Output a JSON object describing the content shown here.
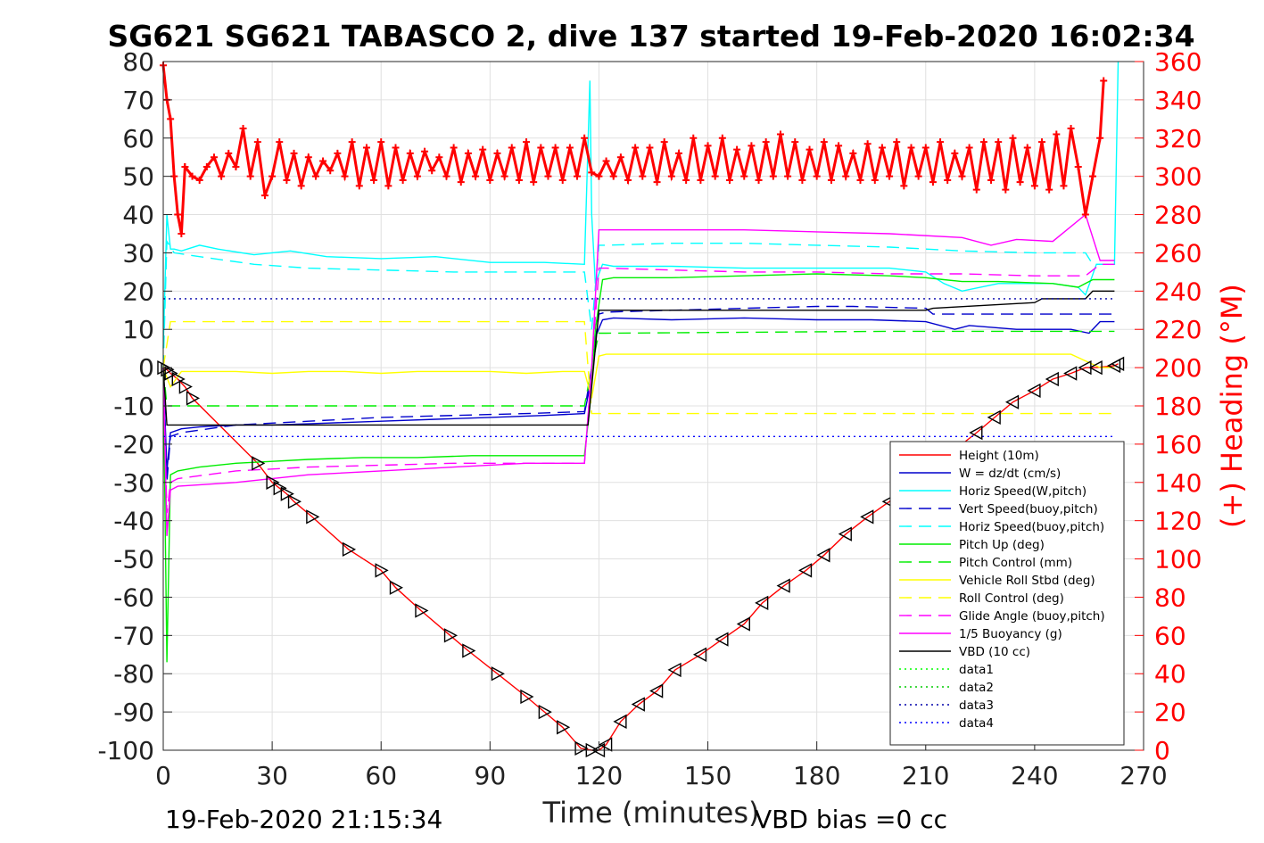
{
  "chart_data": {
    "type": "line",
    "title": "SG621 SG621 TABASCO 2, dive 137 started 19-Feb-2020 16:02:34",
    "xlabel": "Time (minutes)",
    "ylabel": "",
    "y2label": "(+) Heading (°M)",
    "xlim": [
      0,
      270
    ],
    "ylim": [
      -100,
      80
    ],
    "y2lim": [
      0,
      360
    ],
    "xticks": [
      "0",
      "30",
      "60",
      "90",
      "120",
      "150",
      "180",
      "210",
      "240",
      "270"
    ],
    "yticks": [
      "80",
      "70",
      "60",
      "50",
      "40",
      "30",
      "20",
      "10",
      "0",
      "-10",
      "-20",
      "-30",
      "-40",
      "-50",
      "-60",
      "-70",
      "-80",
      "-90",
      "-100"
    ],
    "y2ticks": [
      "360",
      "340",
      "320",
      "300",
      "280",
      "260",
      "240",
      "220",
      "200",
      "180",
      "160",
      "140",
      "120",
      "100",
      "80",
      "60",
      "40",
      "20",
      "0"
    ],
    "grid": true,
    "legend_position": "bottom-right",
    "footer_left": "19-Feb-2020 21:15:34",
    "footer_right": "VBD bias =0 cc",
    "colors": {
      "height": "#ff0000",
      "w": "#0000cc",
      "horiz": "#00ffff",
      "pitch": "#00ee00",
      "roll": "#ffff00",
      "glide": "#ff00ff",
      "vbd": "#000000",
      "heading": "#ff0000",
      "data1": "#00ff00",
      "data2": "#00cc00",
      "data3": "#0000aa",
      "data4": "#0000ff"
    },
    "series": [
      {
        "name": "Height (10m)",
        "style": "solid",
        "color": "#ff0000",
        "x": [
          0,
          1,
          2,
          4,
          6,
          8,
          26,
          30,
          32,
          34,
          36,
          41,
          51,
          60,
          64,
          71,
          79,
          84,
          92,
          100,
          105,
          110,
          115,
          118,
          120,
          122,
          126,
          131,
          136,
          141,
          148,
          154,
          160,
          165,
          171,
          177,
          182,
          188,
          194,
          200,
          205,
          212,
          218,
          224,
          229,
          234,
          240,
          245,
          250,
          254,
          257,
          262,
          263
        ],
        "y": [
          0,
          -0.5,
          -1.5,
          -3,
          -5,
          -8,
          -25,
          -30,
          -31.5,
          -33,
          -35,
          -39,
          -47.5,
          -53,
          -57.5,
          -63.5,
          -70,
          -74,
          -80,
          -86,
          -90,
          -94,
          -99.5,
          -100,
          -100,
          -98.5,
          -92.5,
          -88,
          -84.5,
          -79,
          -75,
          -71,
          -67,
          -61.5,
          -57,
          -53,
          -49,
          -43.5,
          -39,
          -35,
          -30,
          -25,
          -21.5,
          -17,
          -13,
          -9,
          -6,
          -3,
          -1.5,
          0,
          0,
          0.5,
          1
        ]
      },
      {
        "name": "W = dz/dt (cm/s)",
        "style": "solid",
        "color": "#0000cc",
        "x": [
          0,
          1,
          2,
          5,
          10,
          20,
          30,
          45,
          60,
          75,
          90,
          105,
          116,
          117.5,
          119,
          121,
          124,
          140,
          160,
          180,
          195,
          210,
          218,
          222,
          235,
          250,
          255,
          258,
          262
        ],
        "y": [
          0,
          -27,
          -17,
          -16,
          -15.5,
          -15,
          -15,
          -14.5,
          -14,
          -13.5,
          -13,
          -12.5,
          -12,
          -5,
          8,
          12.5,
          13,
          12.5,
          13,
          12.5,
          12.5,
          12,
          10,
          11,
          10,
          10,
          9,
          12,
          12
        ]
      },
      {
        "name": "Horiz Speed(W,pitch)",
        "style": "solid",
        "color": "#00ffff",
        "x": [
          0,
          1,
          2,
          3,
          5,
          10,
          15,
          25,
          35,
          45,
          60,
          75,
          90,
          105,
          116,
          117.5,
          118,
          119,
          121,
          124,
          140,
          160,
          180,
          200,
          210,
          215,
          220,
          230,
          245,
          252,
          254,
          257,
          262,
          263
        ],
        "y": [
          5,
          40,
          31,
          31,
          30.5,
          32,
          31,
          29.5,
          30.5,
          29,
          28.5,
          29,
          27.5,
          27.5,
          27,
          75,
          40,
          22,
          27,
          26.5,
          26.5,
          26,
          26,
          26,
          25,
          22,
          20,
          22,
          22,
          21,
          19,
          27,
          27,
          80
        ]
      },
      {
        "name": "Vert Speed(buoy,pitch)",
        "style": "dashed",
        "color": "#0000cc",
        "x": [
          0,
          1,
          2,
          5,
          20,
          40,
          60,
          80,
          100,
          116,
          118,
          120,
          122,
          140,
          160,
          180,
          190,
          210,
          212,
          230,
          250,
          258,
          262
        ],
        "y": [
          0,
          -30,
          -18,
          -17,
          -15,
          -14,
          -13,
          -12.5,
          -12,
          -11.5,
          0,
          14,
          14.5,
          15,
          15.5,
          16,
          16,
          15.5,
          14,
          14,
          14,
          14,
          14
        ]
      },
      {
        "name": "Horiz Speed(buoy,pitch)",
        "style": "dashed",
        "color": "#00ffff",
        "x": [
          0,
          1,
          3,
          10,
          25,
          40,
          60,
          80,
          100,
          116,
          118,
          120,
          122,
          140,
          160,
          180,
          200,
          220,
          240,
          254,
          256,
          262
        ],
        "y": [
          0,
          33,
          30,
          29,
          27,
          26,
          25.5,
          25,
          25,
          25,
          10,
          32,
          32,
          32.5,
          32.5,
          32,
          31.5,
          30.5,
          30,
          30,
          27,
          27
        ]
      },
      {
        "name": "Pitch Up (deg)",
        "style": "solid",
        "color": "#00ee00",
        "x": [
          0,
          1,
          2,
          4,
          10,
          20,
          30,
          40,
          55,
          70,
          85,
          100,
          116,
          117.5,
          119,
          121,
          124,
          140,
          160,
          180,
          200,
          210,
          215,
          220,
          230,
          245,
          252,
          256,
          262
        ],
        "y": [
          0,
          -77,
          -28,
          -27,
          -26,
          -25,
          -24.5,
          -24,
          -23.5,
          -23.5,
          -23,
          -23,
          -23,
          -10,
          10,
          23,
          23.5,
          23.5,
          24,
          24.5,
          24,
          23.5,
          23,
          22.5,
          22.5,
          22,
          21,
          23,
          23
        ]
      },
      {
        "name": "Pitch Control (mm)",
        "style": "dashed",
        "color": "#00ee00",
        "x": [
          0,
          1,
          3,
          50,
          116,
          118,
          120,
          122,
          200,
          262
        ],
        "y": [
          0,
          -10,
          -10,
          -10,
          -10,
          0,
          9,
          9,
          9.5,
          9.5
        ]
      },
      {
        "name": "Vehicle Roll Stbd (deg)",
        "style": "solid",
        "color": "#ffff00",
        "x": [
          0,
          2,
          5,
          10,
          20,
          30,
          40,
          50,
          60,
          70,
          80,
          90,
          100,
          110,
          116,
          118,
          120,
          122,
          130,
          140,
          150,
          160,
          170,
          180,
          190,
          200,
          210,
          220,
          230,
          240,
          250,
          258,
          262
        ],
        "y": [
          0,
          -5,
          -1,
          -1,
          -1,
          -1.5,
          -1,
          -1,
          -1.5,
          -1,
          -1,
          -1,
          -1.5,
          -1,
          -1,
          -8,
          3,
          3.5,
          3.5,
          3.5,
          3.5,
          3.5,
          3.5,
          3.5,
          3.5,
          3.5,
          3.5,
          3.5,
          3.5,
          3.5,
          3.5,
          0,
          0
        ]
      },
      {
        "name": "Roll Control (deg)",
        "style": "dashed",
        "color": "#ffff00",
        "x": [
          0,
          2,
          5,
          116,
          118,
          120,
          262
        ],
        "y": [
          0,
          12,
          12,
          12,
          -12,
          -12,
          -12
        ]
      },
      {
        "name": "Glide Angle (buoy,pitch)",
        "style": "dashed",
        "color": "#ff00ff",
        "x": [
          0,
          1,
          2,
          4,
          20,
          40,
          60,
          80,
          100,
          116,
          118,
          120,
          122,
          140,
          160,
          180,
          200,
          220,
          240,
          254,
          258,
          262
        ],
        "y": [
          0,
          -38,
          -30,
          -29,
          -27,
          -26,
          -25.5,
          -25,
          -25,
          -25,
          0,
          26,
          26,
          25.5,
          25,
          25,
          24.5,
          24.5,
          24,
          24,
          27,
          27
        ]
      },
      {
        "name": "1/5 Buoyancy (g)",
        "style": "solid",
        "color": "#ff00ff",
        "x": [
          0,
          1,
          2,
          4,
          20,
          40,
          60,
          80,
          100,
          116,
          118,
          120,
          122,
          140,
          160,
          180,
          200,
          220,
          228,
          235,
          245,
          254,
          258,
          262
        ],
        "y": [
          0,
          -44,
          -32,
          -31,
          -30,
          -28,
          -27,
          -26,
          -25,
          -25,
          0,
          36,
          36,
          36,
          36,
          35.5,
          35,
          34,
          32,
          33.5,
          33,
          40,
          28,
          28
        ]
      },
      {
        "name": "VBD (10 cc)",
        "style": "solid",
        "color": "#000000",
        "x": [
          0,
          1,
          2,
          116,
          117,
          118,
          120,
          122,
          180,
          210,
          212,
          240,
          242,
          254,
          256,
          262
        ],
        "y": [
          0,
          -15,
          -15,
          -15,
          -15,
          -5,
          15,
          15,
          15,
          15,
          15.5,
          17,
          18,
          18,
          20,
          20
        ]
      },
      {
        "name": "data1",
        "style": "dotted",
        "color": "#00ff00",
        "x": [],
        "y": []
      },
      {
        "name": "data2",
        "style": "dotted",
        "color": "#00cc00",
        "x": [],
        "y": []
      },
      {
        "name": "data3",
        "style": "dotted",
        "color": "#0000aa",
        "x": [
          0,
          262
        ],
        "y": [
          18,
          18
        ]
      },
      {
        "name": "data4",
        "style": "dotted",
        "color": "#0000ff",
        "x": [
          0,
          262
        ],
        "y": [
          -18,
          -18
        ]
      }
    ],
    "heading": {
      "name": "(+) Heading (°M)",
      "x": [
        0,
        1,
        2,
        3,
        4,
        5,
        6,
        8,
        10,
        12,
        14,
        16,
        18,
        20,
        22,
        24,
        26,
        28,
        30,
        32,
        34,
        36,
        38,
        40,
        42,
        44,
        46,
        48,
        50,
        52,
        54,
        56,
        58,
        60,
        62,
        64,
        66,
        68,
        70,
        72,
        74,
        76,
        78,
        80,
        82,
        84,
        86,
        88,
        90,
        92,
        94,
        96,
        98,
        100,
        102,
        104,
        106,
        108,
        110,
        112,
        114,
        116,
        118,
        120,
        122,
        124,
        126,
        128,
        130,
        132,
        134,
        136,
        138,
        140,
        142,
        144,
        146,
        148,
        150,
        152,
        154,
        156,
        158,
        160,
        162,
        164,
        166,
        168,
        170,
        172,
        174,
        176,
        178,
        180,
        182,
        184,
        186,
        188,
        190,
        192,
        194,
        196,
        198,
        200,
        202,
        204,
        206,
        208,
        210,
        212,
        214,
        216,
        218,
        220,
        222,
        224,
        226,
        228,
        230,
        232,
        234,
        236,
        238,
        240,
        242,
        244,
        246,
        248,
        250,
        252,
        254,
        256,
        258,
        259
      ],
      "y": [
        358,
        340,
        330,
        300,
        280,
        270,
        305,
        300,
        298,
        305,
        310,
        300,
        312,
        305,
        325,
        300,
        318,
        290,
        300,
        318,
        298,
        312,
        295,
        310,
        300,
        308,
        303,
        312,
        300,
        318,
        295,
        315,
        298,
        318,
        295,
        315,
        298,
        312,
        300,
        313,
        303,
        310,
        300,
        315,
        297,
        312,
        300,
        314,
        298,
        312,
        300,
        315,
        298,
        318,
        297,
        315,
        300,
        315,
        298,
        315,
        300,
        320,
        302,
        300,
        308,
        300,
        310,
        298,
        315,
        300,
        315,
        297,
        318,
        300,
        312,
        298,
        320,
        298,
        316,
        300,
        320,
        298,
        314,
        300,
        316,
        298,
        318,
        300,
        322,
        300,
        318,
        298,
        314,
        300,
        318,
        298,
        316,
        300,
        312,
        298,
        317,
        298,
        315,
        300,
        318,
        295,
        315,
        300,
        315,
        297,
        318,
        298,
        312,
        300,
        315,
        293,
        318,
        298,
        318,
        293,
        320,
        297,
        315,
        295,
        318,
        293,
        322,
        295,
        325,
        305,
        280,
        300,
        320,
        350
      ]
    }
  }
}
